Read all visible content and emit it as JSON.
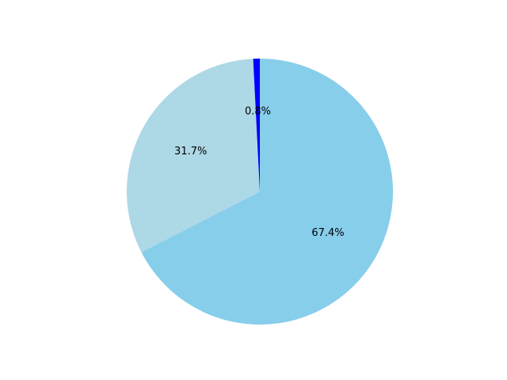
{
  "chart_data": {
    "type": "pie",
    "slices": [
      {
        "value": 67.4,
        "label": "67.4%",
        "color": "#87CEEB"
      },
      {
        "value": 31.7,
        "label": "31.7%",
        "color": "#ADD8E6"
      },
      {
        "value": 0.8,
        "label": "0.8%",
        "color": "#0000FF"
      }
    ],
    "start_angle_deg": 90,
    "direction": "clockwise"
  }
}
